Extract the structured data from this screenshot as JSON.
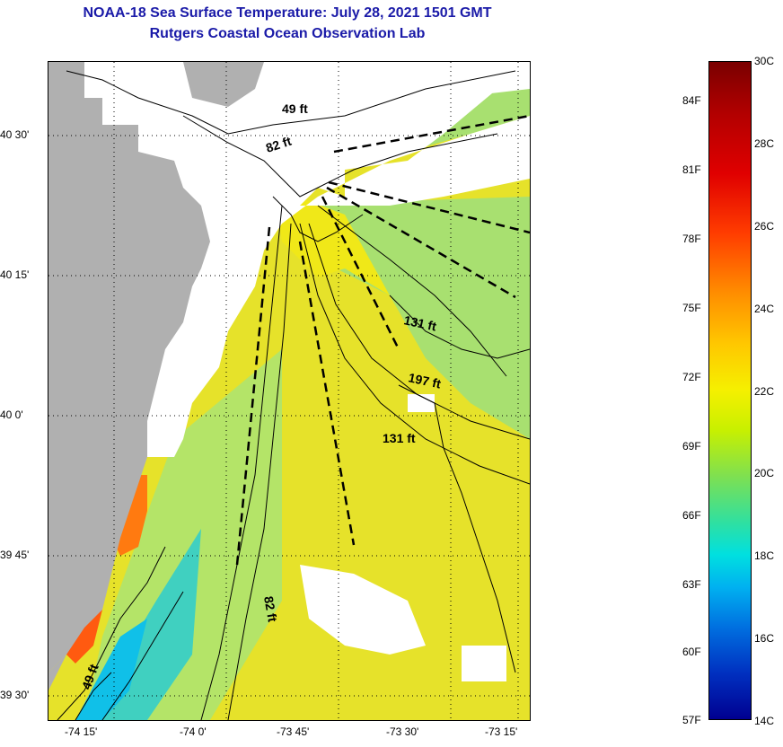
{
  "header": {
    "title": "NOAA-18 Sea Surface Temperature:  July 28, 2021 1501 GMT",
    "subtitle": "Rutgers Coastal Ocean Observation Lab"
  },
  "map": {
    "lat_labels": [
      "40 30'",
      "40 15'",
      "40 0'",
      "39 45'",
      "39 30'"
    ],
    "lon_labels": [
      "-74 15'",
      "-74 0'",
      "-73 45'",
      "-73 30'",
      "-73 15'"
    ],
    "contour_labels": [
      "49 ft",
      "82 ft",
      "131 ft",
      "197 ft",
      "131 ft",
      "82 ft",
      "49 ft"
    ]
  },
  "colorbar": {
    "fahrenheit": [
      "84F",
      "81F",
      "78F",
      "75F",
      "72F",
      "69F",
      "66F",
      "63F",
      "60F",
      "57F"
    ],
    "celsius": [
      "30C",
      "28C",
      "26C",
      "24C",
      "22C",
      "20C",
      "18C",
      "16C",
      "14C"
    ]
  },
  "colors": {
    "land": "#b0b0b0",
    "cloud": "#ffffff",
    "sst_warm": "#f2e600",
    "sst_cool": "#7fe050",
    "title": "#1a1aa8"
  }
}
